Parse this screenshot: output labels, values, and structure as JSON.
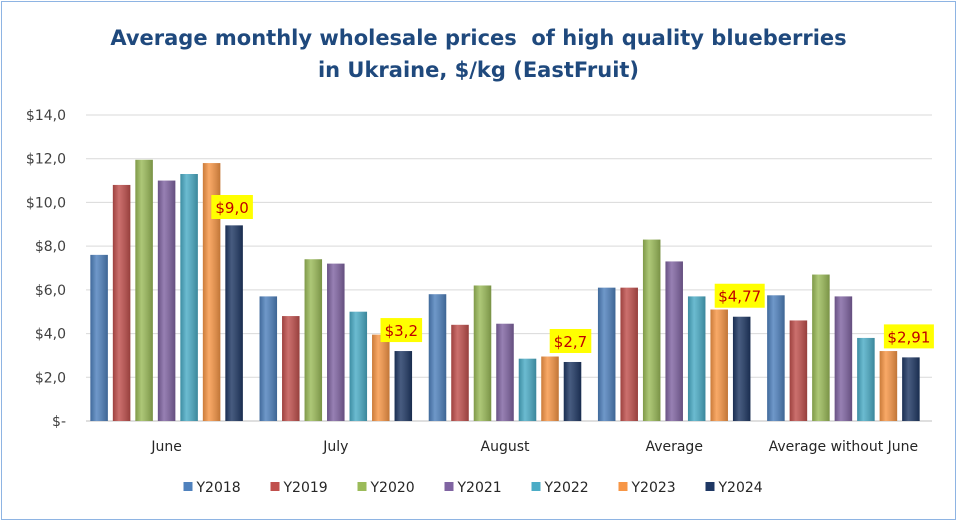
{
  "chart_data": {
    "type": "bar",
    "title": [
      "Average monthly wholesale prices  of high quality blueberries",
      "in Ukraine, $/kg (EastFruit)"
    ],
    "categories": [
      "June",
      "July",
      "August",
      "Average",
      "Average without June"
    ],
    "series": [
      {
        "name": "Y2018",
        "color": "#4f81bd",
        "values": [
          7.6,
          5.7,
          5.8,
          6.1,
          5.75
        ]
      },
      {
        "name": "Y2019",
        "color": "#c0504d",
        "values": [
          10.8,
          4.8,
          4.4,
          6.1,
          4.6
        ]
      },
      {
        "name": "Y2020",
        "color": "#9bbb59",
        "values": [
          11.95,
          7.4,
          6.2,
          8.3,
          6.7
        ]
      },
      {
        "name": "Y2021",
        "color": "#8064a2",
        "values": [
          11.0,
          7.2,
          4.45,
          7.3,
          5.7
        ]
      },
      {
        "name": "Y2022",
        "color": "#4bacc6",
        "values": [
          11.3,
          5.0,
          2.85,
          5.7,
          3.8
        ]
      },
      {
        "name": "Y2023",
        "color": "#f79646",
        "values": [
          11.8,
          3.95,
          2.95,
          5.1,
          3.2
        ]
      },
      {
        "name": "Y2024",
        "color": "#1f3864",
        "values": [
          8.95,
          3.2,
          2.7,
          4.77,
          2.91
        ]
      }
    ],
    "data_labels": [
      "$9,0",
      "$3,2",
      "$2,7",
      "$4,77",
      "$2,91"
    ],
    "ylim": [
      0,
      14
    ],
    "yticks": [
      0,
      2,
      4,
      6,
      8,
      10,
      12,
      14
    ],
    "ytick_labels": [
      "$-",
      "$2,0",
      "$4,0",
      "$6,0",
      "$8,0",
      "$10,0",
      "$12,0",
      "$14,0"
    ],
    "grid": true,
    "legend_position": "bottom",
    "label_highlight_color": "#ffff00",
    "label_text_color": "#c00000"
  }
}
